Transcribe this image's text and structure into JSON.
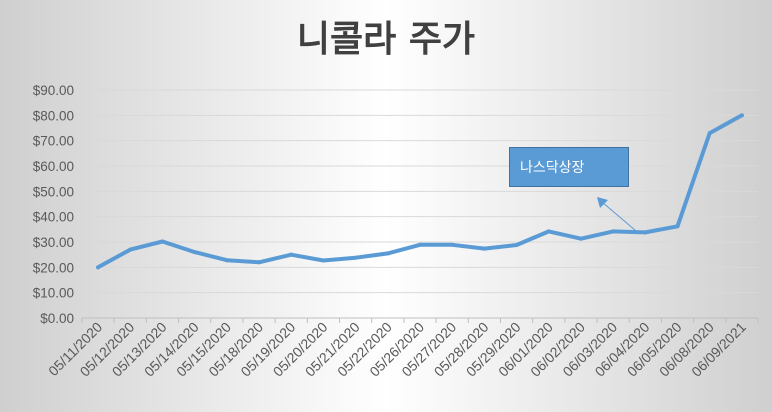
{
  "chart_data": {
    "type": "line",
    "title": "니콜라 주가",
    "categories": [
      "05/11/2020",
      "05/12/2020",
      "05/13/2020",
      "05/14/2020",
      "05/15/2020",
      "05/18/2020",
      "05/19/2020",
      "05/20/2020",
      "05/21/2020",
      "05/22/2020",
      "05/26/2020",
      "05/27/2020",
      "05/28/2020",
      "05/29/2020",
      "06/01/2020",
      "06/02/2020",
      "06/03/2020",
      "06/04/2020",
      "06/05/2020",
      "06/08/2020",
      "06/09/2021"
    ],
    "series": [
      {
        "values": [
          20.0,
          27.0,
          30.2,
          26.0,
          22.8,
          22.0,
          25.0,
          22.7,
          23.8,
          25.5,
          28.9,
          28.9,
          27.4,
          28.8,
          34.2,
          31.3,
          34.2,
          33.8,
          36.2,
          73.0,
          80.0
        ]
      }
    ],
    "yticks": [
      "$0.00",
      "$10.00",
      "$20.00",
      "$30.00",
      "$40.00",
      "$50.00",
      "$60.00",
      "$70.00",
      "$80.00",
      "$90.00"
    ],
    "ylim": [
      0,
      90
    ],
    "grid": true,
    "colors": {
      "line": "#5b9bd5",
      "grid": "#d9d9d9",
      "callout": "#5b9bd5"
    },
    "annotations": [
      {
        "text": "나스닥상장",
        "points_to": "06/04/2020"
      }
    ]
  }
}
